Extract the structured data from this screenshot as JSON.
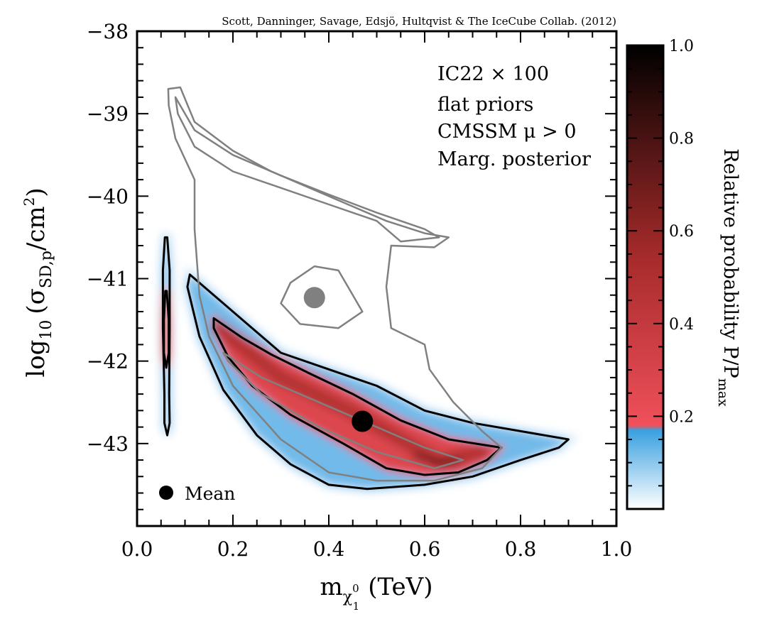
{
  "credit": "Scott, Danninger, Savage, Edsjö, Hultqvist & The IceCube Collab. (2012)",
  "annotation": [
    "IC22 × 100",
    "flat priors",
    "CMSSM μ > 0",
    "Marg. posterior"
  ],
  "legend": {
    "marker": "filled-circle",
    "label": "Mean"
  },
  "colors": {
    "low": "#ffffff",
    "mid_blue": "#3aa0e0",
    "threshold_red": "#f0505a",
    "dark_red": "#a52a2a",
    "high": "#000000",
    "contour_posterior": "#000000",
    "contour_reference": "#808080",
    "mean_posterior": "#000000",
    "mean_reference": "#808080"
  },
  "chart_data": {
    "type": "heatmap",
    "xlabel": {
      "main": "m",
      "sub": "χ",
      "sup": "0",
      "subsub": "1",
      "unit": "(TeV)"
    },
    "ylabel": {
      "pre": "log",
      "pre_sub": "10",
      "main": "(σ",
      "sub": "SD,p",
      "unit": "/cm",
      "unit_sup": "2",
      "close": ")"
    },
    "xlim": [
      0.0,
      1.0
    ],
    "ylim": [
      -44.0,
      -38.0
    ],
    "xticks": [
      0.0,
      0.2,
      0.4,
      0.6,
      0.8,
      1.0
    ],
    "xtick_labels": [
      "0.0",
      "0.2",
      "0.4",
      "0.6",
      "0.8",
      "1.0"
    ],
    "yticks": [
      -43,
      -42,
      -41,
      -40,
      -39,
      -38
    ],
    "ytick_labels": [
      "−43",
      "−42",
      "−41",
      "−40",
      "−39",
      "−38"
    ],
    "grid": false,
    "colorbar": {
      "title": {
        "main": "Relative probability P/P",
        "sub": "max"
      },
      "range": [
        0.0,
        1.0
      ],
      "ticks": [
        0.2,
        0.4,
        0.6,
        0.8,
        1.0
      ],
      "tick_labels": [
        "0.2",
        "0.4",
        "0.6",
        "0.8",
        "1.0"
      ],
      "threshold": 0.18
    },
    "posterior_mean": {
      "x": 0.47,
      "y": -42.73
    },
    "reference_mean": {
      "x": 0.37,
      "y": -41.23
    },
    "density_ridges": [
      {
        "x": [
          0.06,
          0.06
        ],
        "y": [
          -42.0,
          -41.3
        ],
        "peak": 0.3,
        "width": 0.012
      },
      {
        "x": [
          0.17,
          0.3,
          0.45,
          0.55,
          0.63,
          0.72
        ],
        "y": [
          -41.6,
          -42.2,
          -42.62,
          -42.95,
          -43.22,
          -43.1
        ],
        "peak": 0.5,
        "width": 0.25
      },
      {
        "x": [
          0.58,
          0.63,
          0.67
        ],
        "y": [
          -43.15,
          -43.23,
          -43.22
        ],
        "peak": 1.0,
        "width": 0.07
      }
    ],
    "contours": [
      {
        "level": "outer",
        "dataset": "posterior",
        "points": [
          [
            0.11,
            -40.95
          ],
          [
            0.16,
            -41.2
          ],
          [
            0.24,
            -41.6
          ],
          [
            0.3,
            -41.9
          ],
          [
            0.4,
            -42.1
          ],
          [
            0.5,
            -42.3
          ],
          [
            0.6,
            -42.6
          ],
          [
            0.7,
            -42.75
          ],
          [
            0.8,
            -42.85
          ],
          [
            0.9,
            -42.95
          ],
          [
            0.88,
            -43.05
          ],
          [
            0.8,
            -43.2
          ],
          [
            0.7,
            -43.4
          ],
          [
            0.6,
            -43.5
          ],
          [
            0.48,
            -43.55
          ],
          [
            0.4,
            -43.5
          ],
          [
            0.32,
            -43.25
          ],
          [
            0.25,
            -42.9
          ],
          [
            0.18,
            -42.35
          ],
          [
            0.13,
            -41.7
          ],
          [
            0.105,
            -41.1
          ]
        ]
      },
      {
        "level": "inner",
        "dataset": "posterior",
        "points": [
          [
            0.16,
            -41.48
          ],
          [
            0.22,
            -41.72
          ],
          [
            0.28,
            -41.92
          ],
          [
            0.36,
            -42.15
          ],
          [
            0.45,
            -42.4
          ],
          [
            0.55,
            -42.72
          ],
          [
            0.65,
            -42.95
          ],
          [
            0.76,
            -43.05
          ],
          [
            0.73,
            -43.2
          ],
          [
            0.67,
            -43.35
          ],
          [
            0.6,
            -43.38
          ],
          [
            0.52,
            -43.3
          ],
          [
            0.43,
            -43.0
          ],
          [
            0.32,
            -42.65
          ],
          [
            0.24,
            -42.3
          ],
          [
            0.19,
            -41.95
          ],
          [
            0.16,
            -41.6
          ]
        ]
      },
      {
        "level": "outer",
        "dataset": "posterior",
        "points": [
          [
            0.063,
            -40.5
          ],
          [
            0.068,
            -40.9
          ],
          [
            0.068,
            -41.6
          ],
          [
            0.067,
            -42.4
          ],
          [
            0.068,
            -42.75
          ],
          [
            0.063,
            -42.9
          ],
          [
            0.057,
            -42.75
          ],
          [
            0.057,
            -42.4
          ],
          [
            0.054,
            -41.6
          ],
          [
            0.054,
            -40.9
          ],
          [
            0.058,
            -40.5
          ]
        ]
      },
      {
        "level": "inner",
        "dataset": "posterior",
        "points": [
          [
            0.062,
            -41.15
          ],
          [
            0.066,
            -41.5
          ],
          [
            0.066,
            -41.9
          ],
          [
            0.061,
            -42.08
          ],
          [
            0.056,
            -41.9
          ],
          [
            0.056,
            -41.5
          ],
          [
            0.059,
            -41.15
          ]
        ]
      },
      {
        "level": "outer",
        "dataset": "reference",
        "points": [
          [
            0.065,
            -38.7
          ],
          [
            0.09,
            -38.68
          ],
          [
            0.12,
            -39.1
          ],
          [
            0.2,
            -39.45
          ],
          [
            0.28,
            -39.7
          ],
          [
            0.36,
            -39.9
          ],
          [
            0.44,
            -40.1
          ],
          [
            0.52,
            -40.3
          ],
          [
            0.6,
            -40.45
          ],
          [
            0.65,
            -40.5
          ],
          [
            0.62,
            -40.62
          ],
          [
            0.53,
            -40.6
          ],
          [
            0.52,
            -41.1
          ],
          [
            0.53,
            -41.6
          ],
          [
            0.6,
            -41.8
          ],
          [
            0.61,
            -42.1
          ],
          [
            0.66,
            -42.5
          ],
          [
            0.72,
            -42.85
          ],
          [
            0.76,
            -43.05
          ],
          [
            0.72,
            -43.3
          ],
          [
            0.62,
            -43.45
          ],
          [
            0.5,
            -43.45
          ],
          [
            0.4,
            -43.35
          ],
          [
            0.3,
            -42.95
          ],
          [
            0.2,
            -42.3
          ],
          [
            0.15,
            -41.7
          ],
          [
            0.13,
            -41.2
          ],
          [
            0.12,
            -40.4
          ],
          [
            0.12,
            -39.8
          ],
          [
            0.08,
            -39.3
          ],
          [
            0.066,
            -38.9
          ]
        ]
      },
      {
        "level": "inner",
        "dataset": "reference",
        "points": [
          [
            0.08,
            -38.8
          ],
          [
            0.12,
            -39.2
          ],
          [
            0.2,
            -39.5
          ],
          [
            0.3,
            -39.75
          ],
          [
            0.4,
            -39.98
          ],
          [
            0.5,
            -40.2
          ],
          [
            0.6,
            -40.4
          ],
          [
            0.63,
            -40.5
          ],
          [
            0.55,
            -40.55
          ],
          [
            0.5,
            -40.3
          ],
          [
            0.4,
            -40.1
          ],
          [
            0.3,
            -39.9
          ],
          [
            0.2,
            -39.7
          ],
          [
            0.12,
            -39.4
          ],
          [
            0.085,
            -39.0
          ]
        ]
      },
      {
        "level": "inner",
        "dataset": "reference",
        "points": [
          [
            0.37,
            -40.85
          ],
          [
            0.42,
            -40.9
          ],
          [
            0.45,
            -41.2
          ],
          [
            0.47,
            -41.4
          ],
          [
            0.42,
            -41.6
          ],
          [
            0.34,
            -41.55
          ],
          [
            0.3,
            -41.3
          ],
          [
            0.32,
            -41.05
          ]
        ]
      },
      {
        "level": "inner",
        "dataset": "reference",
        "points": [
          [
            0.18,
            -41.9
          ],
          [
            0.26,
            -42.2
          ],
          [
            0.38,
            -42.5
          ],
          [
            0.5,
            -42.8
          ],
          [
            0.6,
            -43.05
          ],
          [
            0.68,
            -43.2
          ],
          [
            0.62,
            -43.3
          ],
          [
            0.5,
            -43.1
          ],
          [
            0.38,
            -42.8
          ],
          [
            0.26,
            -42.4
          ],
          [
            0.19,
            -42.0
          ]
        ]
      }
    ]
  }
}
